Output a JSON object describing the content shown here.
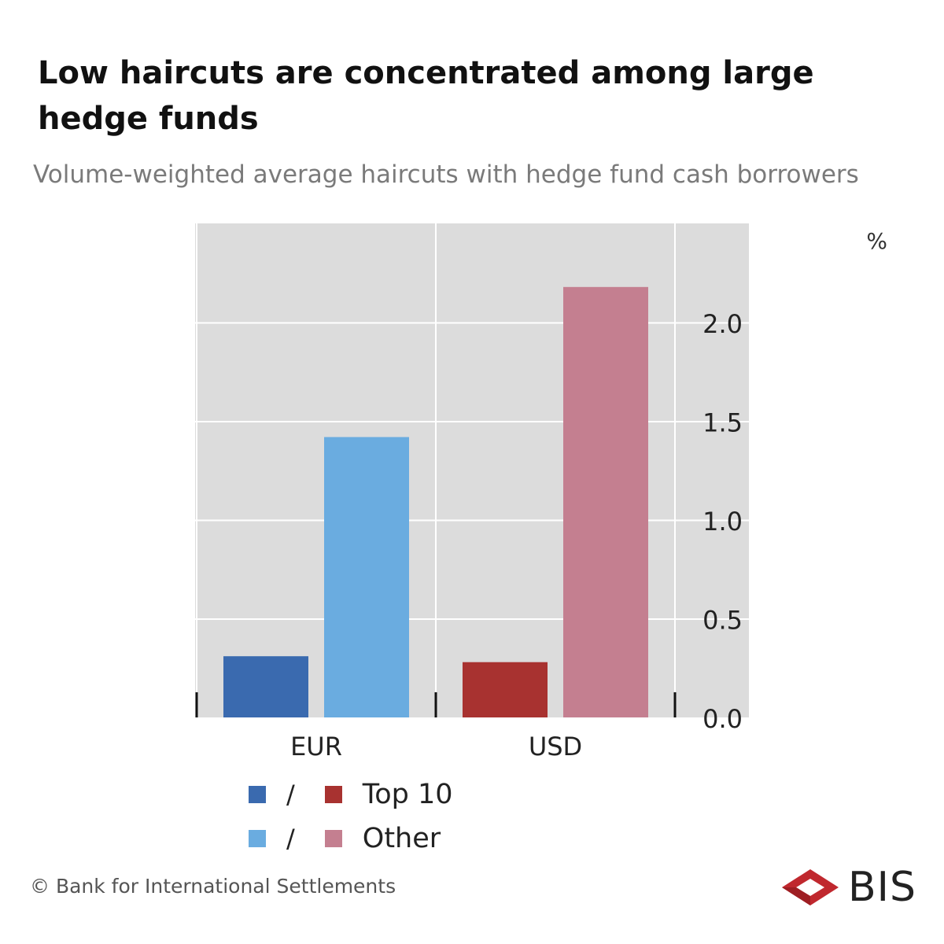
{
  "title": "Low haircuts are concentrated among large hedge funds",
  "subtitle": "Volume-weighted average haircuts with hedge fund cash borrowers",
  "chart_data": {
    "type": "bar",
    "unit_label": "%",
    "categories": [
      "EUR",
      "USD"
    ],
    "ylim": [
      0,
      2.2
    ],
    "yticks": [
      "0.0",
      "0.5",
      "1.0",
      "1.5",
      "2.0"
    ],
    "y_axis_position": "right",
    "grid": true,
    "bars": [
      {
        "category": "EUR",
        "group": "Top 10",
        "value": 0.31,
        "color": "#3a6aaf"
      },
      {
        "category": "EUR",
        "group": "Other",
        "value": 1.42,
        "color": "#6aace0"
      },
      {
        "category": "USD",
        "group": "Top 10",
        "value": 0.28,
        "color": "#a83230"
      },
      {
        "category": "USD",
        "group": "Other",
        "value": 2.18,
        "color": "#c47f90"
      }
    ],
    "legend": [
      {
        "colors": [
          "#3a6aaf",
          "#a83230"
        ],
        "separator": "/",
        "label": "Top 10"
      },
      {
        "colors": [
          "#6aace0",
          "#c47f90"
        ],
        "separator": "/",
        "label": "Other"
      }
    ],
    "legend_placement": "bottom-left"
  },
  "footer": "© Bank for International Settlements",
  "logo": {
    "text": "BIS",
    "color": "#c0282e"
  }
}
